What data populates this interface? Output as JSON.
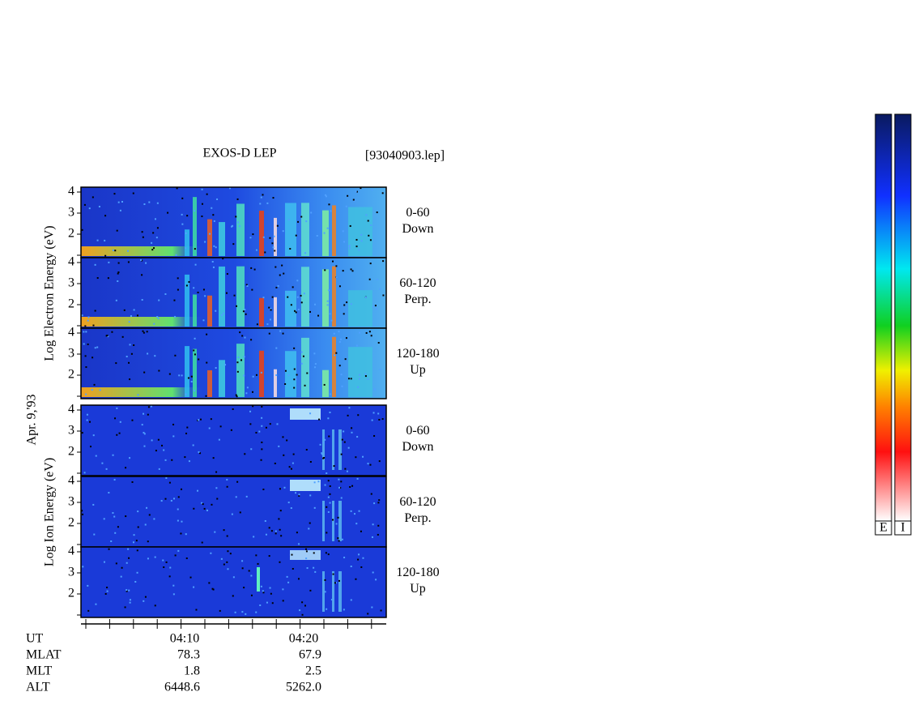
{
  "header": {
    "title": "EXOS-D LEP",
    "file": "[93040903.lep]"
  },
  "axis_labels": {
    "electron": "Log Electron Energy (eV)",
    "ion": "Log  Ion Energy (eV)",
    "date": "Apr. 9,'93"
  },
  "energy_ticks": [
    "2",
    "3",
    "4"
  ],
  "panels": [
    {
      "species": "electron",
      "angle": "0-60",
      "direction": "Down"
    },
    {
      "species": "electron",
      "angle": "60-120",
      "direction": "Perp."
    },
    {
      "species": "electron",
      "angle": "120-180",
      "direction": "Up"
    },
    {
      "species": "ion",
      "angle": "0-60",
      "direction": "Down"
    },
    {
      "species": "ion",
      "angle": "60-120",
      "direction": "Perp."
    },
    {
      "species": "ion",
      "angle": "120-180",
      "direction": "Up"
    }
  ],
  "ephemeris": {
    "time_label": "UT",
    "times": [
      "04:10",
      "04:20"
    ],
    "rows": [
      [
        "MLAT",
        "78.3",
        "67.9"
      ],
      [
        "MLT",
        "1.8",
        "2.5"
      ],
      [
        "ALT",
        "6448.6",
        "5262.0"
      ]
    ]
  },
  "colorbars": [
    "E",
    "I"
  ]
}
